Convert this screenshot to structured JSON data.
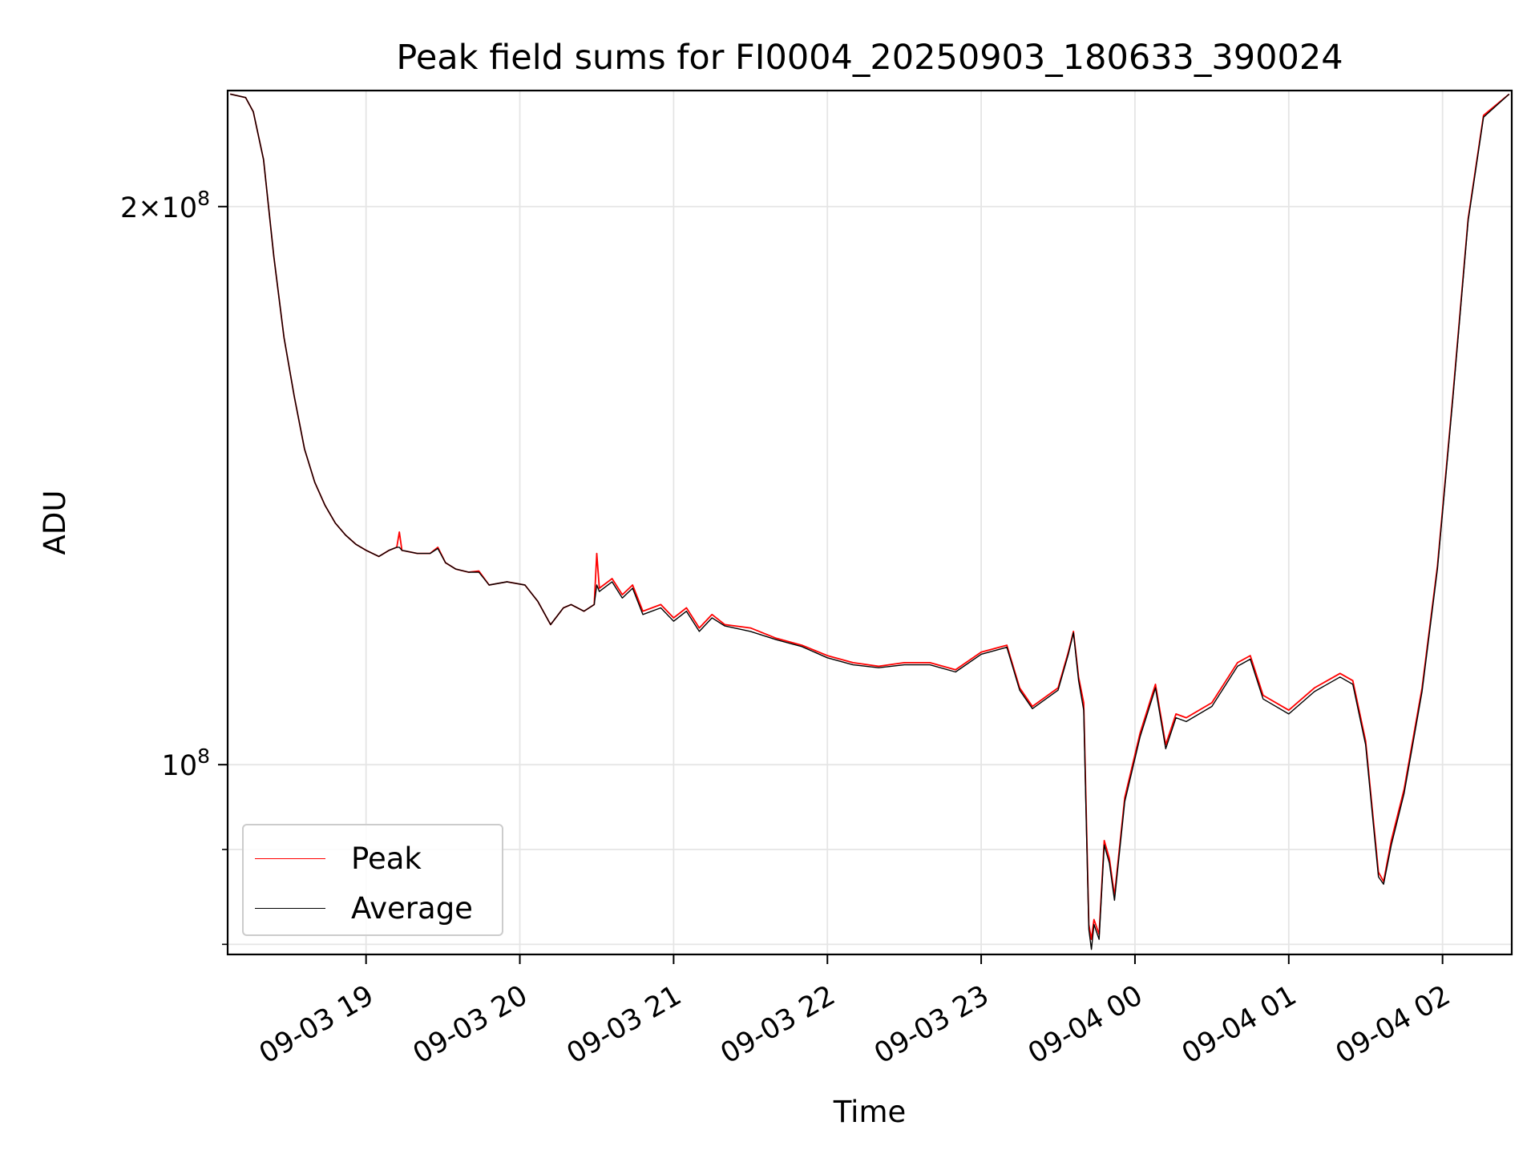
{
  "chart_data": {
    "type": "line",
    "title": "Peak field sums for FI0004_20250903_180633_390024",
    "xlabel": "Time",
    "ylabel": "ADU",
    "yscale": "log",
    "grid": true,
    "legend_position": "lower-left",
    "xlim": [
      "2025-09-03 18:06",
      "2025-09-04 02:27"
    ],
    "ylim": [
      79000000,
      231000000
    ],
    "x_ticks": [
      "09-03 19",
      "09-03 20",
      "09-03 21",
      "09-03 22",
      "09-03 23",
      "09-04 00",
      "09-04 01",
      "09-04 02"
    ],
    "y_ticks": [
      {
        "value": 200000000,
        "label_base": "2×10",
        "label_exp": "8"
      },
      {
        "value": 100000000,
        "label_base": "10",
        "label_exp": "8"
      }
    ],
    "y_minor_ticks": [
      80000000,
      90000000
    ],
    "series": [
      {
        "name": "Peak",
        "color": "#ff0000",
        "points": [
          [
            "2025-09-03 18:07",
            230000000
          ],
          [
            "2025-09-03 18:13",
            229000000
          ],
          [
            "2025-09-03 18:16",
            225000000
          ],
          [
            "2025-09-03 18:20",
            212000000
          ],
          [
            "2025-09-03 18:24",
            188000000
          ],
          [
            "2025-09-03 18:28",
            170000000
          ],
          [
            "2025-09-03 18:32",
            158000000
          ],
          [
            "2025-09-03 18:36",
            148000000
          ],
          [
            "2025-09-03 18:40",
            142000000
          ],
          [
            "2025-09-03 18:44",
            138000000
          ],
          [
            "2025-09-03 18:48",
            135000000
          ],
          [
            "2025-09-03 18:52",
            133000000
          ],
          [
            "2025-09-03 18:56",
            131500000
          ],
          [
            "2025-09-03 19:00",
            130500000
          ],
          [
            "2025-09-03 19:05",
            129500000
          ],
          [
            "2025-09-03 19:09",
            130500000
          ],
          [
            "2025-09-03 19:12",
            131000000
          ],
          [
            "2025-09-03 19:13",
            133500000
          ],
          [
            "2025-09-03 19:14",
            130500000
          ],
          [
            "2025-09-03 19:20",
            130000000
          ],
          [
            "2025-09-03 19:25",
            130000000
          ],
          [
            "2025-09-03 19:28",
            131000000
          ],
          [
            "2025-09-03 19:31",
            128500000
          ],
          [
            "2025-09-03 19:35",
            127500000
          ],
          [
            "2025-09-03 19:40",
            127000000
          ],
          [
            "2025-09-03 19:44",
            127200000
          ],
          [
            "2025-09-03 19:48",
            125000000
          ],
          [
            "2025-09-03 19:55",
            125500000
          ],
          [
            "2025-09-03 20:02",
            125000000
          ],
          [
            "2025-09-03 20:07",
            122500000
          ],
          [
            "2025-09-03 20:12",
            119000000
          ],
          [
            "2025-09-03 20:17",
            121500000
          ],
          [
            "2025-09-03 20:20",
            122000000
          ],
          [
            "2025-09-03 20:25",
            121000000
          ],
          [
            "2025-09-03 20:29",
            122000000
          ],
          [
            "2025-09-03 20:30",
            130000000
          ],
          [
            "2025-09-03 20:31",
            124500000
          ],
          [
            "2025-09-03 20:36",
            126000000
          ],
          [
            "2025-09-03 20:40",
            123500000
          ],
          [
            "2025-09-03 20:44",
            125000000
          ],
          [
            "2025-09-03 20:48",
            121000000
          ],
          [
            "2025-09-03 20:55",
            122000000
          ],
          [
            "2025-09-03 21:00",
            120000000
          ],
          [
            "2025-09-03 21:05",
            121500000
          ],
          [
            "2025-09-03 21:10",
            118500000
          ],
          [
            "2025-09-03 21:15",
            120500000
          ],
          [
            "2025-09-03 21:20",
            119000000
          ],
          [
            "2025-09-03 21:30",
            118500000
          ],
          [
            "2025-09-03 21:40",
            117000000
          ],
          [
            "2025-09-03 21:50",
            116000000
          ],
          [
            "2025-09-03 22:00",
            114500000
          ],
          [
            "2025-09-03 22:10",
            113500000
          ],
          [
            "2025-09-03 22:20",
            113000000
          ],
          [
            "2025-09-03 22:30",
            113500000
          ],
          [
            "2025-09-03 22:40",
            113500000
          ],
          [
            "2025-09-03 22:50",
            112500000
          ],
          [
            "2025-09-03 23:00",
            115000000
          ],
          [
            "2025-09-03 23:10",
            116000000
          ],
          [
            "2025-09-03 23:15",
            110000000
          ],
          [
            "2025-09-03 23:20",
            107500000
          ],
          [
            "2025-09-03 23:30",
            110000000
          ],
          [
            "2025-09-03 23:34",
            115000000
          ],
          [
            "2025-09-03 23:36",
            118000000
          ],
          [
            "2025-09-03 23:38",
            111500000
          ],
          [
            "2025-09-03 23:40",
            108000000
          ],
          [
            "2025-09-03 23:41",
            94000000
          ],
          [
            "2025-09-03 23:42",
            82000000
          ],
          [
            "2025-09-03 23:43",
            80500000
          ],
          [
            "2025-09-03 23:44",
            82500000
          ],
          [
            "2025-09-03 23:46",
            81000000
          ],
          [
            "2025-09-03 23:48",
            91000000
          ],
          [
            "2025-09-03 23:50",
            89000000
          ],
          [
            "2025-09-03 23:52",
            85000000
          ],
          [
            "2025-09-03 23:56",
            96000000
          ],
          [
            "2025-09-04 00:02",
            104000000
          ],
          [
            "2025-09-04 00:08",
            110500000
          ],
          [
            "2025-09-04 00:12",
            102500000
          ],
          [
            "2025-09-04 00:16",
            106500000
          ],
          [
            "2025-09-04 00:20",
            106000000
          ],
          [
            "2025-09-04 00:30",
            108000000
          ],
          [
            "2025-09-04 00:40",
            113500000
          ],
          [
            "2025-09-04 00:45",
            114500000
          ],
          [
            "2025-09-04 00:50",
            109000000
          ],
          [
            "2025-09-04 01:00",
            107000000
          ],
          [
            "2025-09-04 01:10",
            110000000
          ],
          [
            "2025-09-04 01:20",
            112000000
          ],
          [
            "2025-09-04 01:25",
            111000000
          ],
          [
            "2025-09-04 01:30",
            103000000
          ],
          [
            "2025-09-04 01:35",
            87500000
          ],
          [
            "2025-09-04 01:37",
            86500000
          ],
          [
            "2025-09-04 01:40",
            91000000
          ],
          [
            "2025-09-04 01:45",
            97000000
          ],
          [
            "2025-09-04 01:52",
            110000000
          ],
          [
            "2025-09-04 01:58",
            128000000
          ],
          [
            "2025-09-04 02:04",
            158000000
          ],
          [
            "2025-09-04 02:10",
            197000000
          ],
          [
            "2025-09-04 02:16",
            224000000
          ],
          [
            "2025-09-04 02:26",
            230000000
          ]
        ]
      },
      {
        "name": "Average",
        "color": "#000000",
        "points": [
          [
            "2025-09-03 18:07",
            230000000
          ],
          [
            "2025-09-03 18:13",
            229000000
          ],
          [
            "2025-09-03 18:16",
            225000000
          ],
          [
            "2025-09-03 18:20",
            212000000
          ],
          [
            "2025-09-03 18:24",
            188000000
          ],
          [
            "2025-09-03 18:28",
            170000000
          ],
          [
            "2025-09-03 18:32",
            158000000
          ],
          [
            "2025-09-03 18:36",
            148000000
          ],
          [
            "2025-09-03 18:40",
            142000000
          ],
          [
            "2025-09-03 18:44",
            138000000
          ],
          [
            "2025-09-03 18:48",
            135000000
          ],
          [
            "2025-09-03 18:52",
            133000000
          ],
          [
            "2025-09-03 18:56",
            131500000
          ],
          [
            "2025-09-03 19:00",
            130500000
          ],
          [
            "2025-09-03 19:05",
            129500000
          ],
          [
            "2025-09-03 19:09",
            130500000
          ],
          [
            "2025-09-03 19:12",
            131000000
          ],
          [
            "2025-09-03 19:13",
            131000000
          ],
          [
            "2025-09-03 19:14",
            130500000
          ],
          [
            "2025-09-03 19:20",
            130000000
          ],
          [
            "2025-09-03 19:25",
            130000000
          ],
          [
            "2025-09-03 19:28",
            130800000
          ],
          [
            "2025-09-03 19:31",
            128500000
          ],
          [
            "2025-09-03 19:35",
            127500000
          ],
          [
            "2025-09-03 19:40",
            127000000
          ],
          [
            "2025-09-03 19:44",
            127000000
          ],
          [
            "2025-09-03 19:48",
            125000000
          ],
          [
            "2025-09-03 19:55",
            125500000
          ],
          [
            "2025-09-03 20:02",
            125000000
          ],
          [
            "2025-09-03 20:07",
            122500000
          ],
          [
            "2025-09-03 20:12",
            119000000
          ],
          [
            "2025-09-03 20:17",
            121500000
          ],
          [
            "2025-09-03 20:20",
            122000000
          ],
          [
            "2025-09-03 20:25",
            121000000
          ],
          [
            "2025-09-03 20:29",
            122000000
          ],
          [
            "2025-09-03 20:30",
            125000000
          ],
          [
            "2025-09-03 20:31",
            124000000
          ],
          [
            "2025-09-03 20:36",
            125500000
          ],
          [
            "2025-09-03 20:40",
            123000000
          ],
          [
            "2025-09-03 20:44",
            124500000
          ],
          [
            "2025-09-03 20:48",
            120500000
          ],
          [
            "2025-09-03 20:55",
            121500000
          ],
          [
            "2025-09-03 21:00",
            119500000
          ],
          [
            "2025-09-03 21:05",
            121000000
          ],
          [
            "2025-09-03 21:10",
            118000000
          ],
          [
            "2025-09-03 21:15",
            120000000
          ],
          [
            "2025-09-03 21:20",
            118800000
          ],
          [
            "2025-09-03 21:30",
            118000000
          ],
          [
            "2025-09-03 21:40",
            116800000
          ],
          [
            "2025-09-03 21:50",
            115800000
          ],
          [
            "2025-09-03 22:00",
            114200000
          ],
          [
            "2025-09-03 22:10",
            113200000
          ],
          [
            "2025-09-03 22:20",
            112800000
          ],
          [
            "2025-09-03 22:30",
            113200000
          ],
          [
            "2025-09-03 22:40",
            113200000
          ],
          [
            "2025-09-03 22:50",
            112200000
          ],
          [
            "2025-09-03 23:00",
            114700000
          ],
          [
            "2025-09-03 23:10",
            115700000
          ],
          [
            "2025-09-03 23:15",
            109700000
          ],
          [
            "2025-09-03 23:20",
            107200000
          ],
          [
            "2025-09-03 23:30",
            109700000
          ],
          [
            "2025-09-03 23:34",
            114700000
          ],
          [
            "2025-09-03 23:36",
            117800000
          ],
          [
            "2025-09-03 23:38",
            111000000
          ],
          [
            "2025-09-03 23:40",
            107000000
          ],
          [
            "2025-09-03 23:41",
            93000000
          ],
          [
            "2025-09-03 23:42",
            81500000
          ],
          [
            "2025-09-03 23:43",
            79500000
          ],
          [
            "2025-09-03 23:44",
            82000000
          ],
          [
            "2025-09-03 23:46",
            80500000
          ],
          [
            "2025-09-03 23:48",
            90500000
          ],
          [
            "2025-09-03 23:50",
            88500000
          ],
          [
            "2025-09-03 23:52",
            84500000
          ],
          [
            "2025-09-03 23:56",
            95500000
          ],
          [
            "2025-09-04 00:02",
            103500000
          ],
          [
            "2025-09-04 00:08",
            110000000
          ],
          [
            "2025-09-04 00:12",
            102000000
          ],
          [
            "2025-09-04 00:16",
            106000000
          ],
          [
            "2025-09-04 00:20",
            105500000
          ],
          [
            "2025-09-04 00:30",
            107500000
          ],
          [
            "2025-09-04 00:40",
            113000000
          ],
          [
            "2025-09-04 00:45",
            114000000
          ],
          [
            "2025-09-04 00:50",
            108500000
          ],
          [
            "2025-09-04 01:00",
            106500000
          ],
          [
            "2025-09-04 01:10",
            109500000
          ],
          [
            "2025-09-04 01:20",
            111500000
          ],
          [
            "2025-09-04 01:25",
            110500000
          ],
          [
            "2025-09-04 01:30",
            102500000
          ],
          [
            "2025-09-04 01:35",
            87000000
          ],
          [
            "2025-09-04 01:37",
            86200000
          ],
          [
            "2025-09-04 01:40",
            90500000
          ],
          [
            "2025-09-04 01:45",
            96500000
          ],
          [
            "2025-09-04 01:52",
            109500000
          ],
          [
            "2025-09-04 01:58",
            127500000
          ],
          [
            "2025-09-04 02:04",
            157500000
          ],
          [
            "2025-09-04 02:10",
            196500000
          ],
          [
            "2025-09-04 02:16",
            223500000
          ],
          [
            "2025-09-04 02:26",
            230000000
          ]
        ]
      }
    ]
  }
}
